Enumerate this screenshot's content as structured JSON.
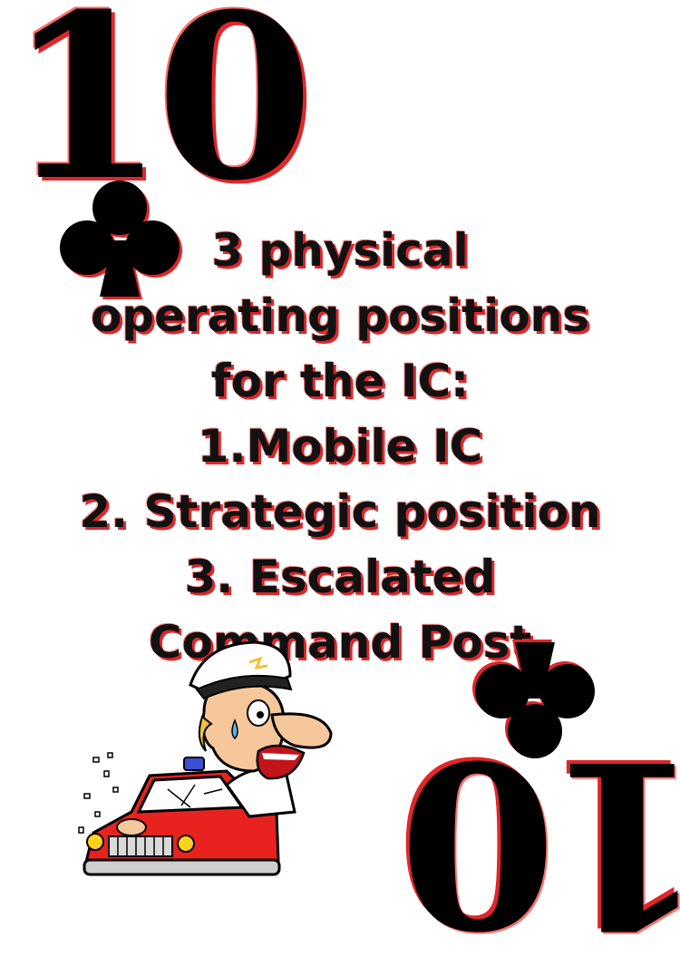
{
  "card": {
    "rank": "10",
    "suit_icon": "club-icon",
    "colors": {
      "ink": "#000000",
      "shadow": "#e0262a",
      "car": "#e8231f"
    }
  },
  "body_text": {
    "lines": [
      "3 physical",
      "operating positions",
      "for the IC:",
      "1.Mobile IC",
      "2. Strategic position",
      "3. Escalated",
      "Command Post"
    ]
  },
  "illustration": {
    "icon": "fire-chief-driving-car-illustration"
  }
}
